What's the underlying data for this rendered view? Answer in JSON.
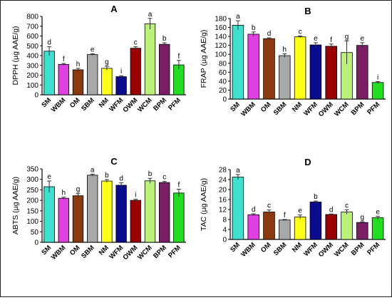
{
  "chart_data": [
    {
      "panel": "A",
      "type": "bar",
      "title": "",
      "ylabel": "DPPH (µg AAE/g)",
      "ylim": [
        0,
        800
      ],
      "yticks": [
        0,
        100,
        200,
        300,
        400,
        500,
        600,
        700,
        800
      ],
      "categories": [
        "SM",
        "WBM",
        "OM",
        "SBM",
        "NM",
        "WFM",
        "OWM",
        "WCM",
        "BPM",
        "PFM"
      ],
      "values": [
        445,
        310,
        255,
        410,
        270,
        185,
        475,
        725,
        515,
        305
      ],
      "errors": [
        45,
        10,
        15,
        8,
        20,
        10,
        15,
        55,
        15,
        45
      ],
      "letters": [
        "d",
        "f",
        "h",
        "e",
        "g",
        "i",
        "c",
        "a",
        "b",
        "f"
      ],
      "colors": [
        "#40e0d0",
        "#e040e0",
        "#8b3a0f",
        "#a8a8a8",
        "#ffff1a",
        "#0a0a8c",
        "#990000",
        "#bbf07a",
        "#7a1f66",
        "#22dd22"
      ]
    },
    {
      "panel": "B",
      "type": "bar",
      "title": "",
      "ylabel": "FRAP (µg AAE/g)",
      "ylim": [
        0,
        180
      ],
      "yticks": [
        0,
        20,
        40,
        60,
        80,
        100,
        120,
        140,
        160,
        180
      ],
      "categories": [
        "SM",
        "WBM",
        "OM",
        "SBM",
        "NM",
        "WFM",
        "OWM",
        "WCM",
        "BPM",
        "PFM"
      ],
      "values": [
        165,
        145,
        135,
        97,
        139,
        121,
        118,
        104,
        120,
        37
      ],
      "errors": [
        10,
        5,
        2,
        4,
        2,
        5,
        5,
        26,
        6,
        2
      ],
      "letters": [
        "a",
        "b",
        "d",
        "h",
        "c",
        "e",
        "f",
        "g",
        "e",
        "i"
      ],
      "colors": [
        "#40e0d0",
        "#e040e0",
        "#8b3a0f",
        "#a8a8a8",
        "#ffff1a",
        "#0a0a8c",
        "#990000",
        "#bbf07a",
        "#7a1f66",
        "#22dd22"
      ]
    },
    {
      "panel": "C",
      "type": "bar",
      "title": "",
      "ylabel": "ABTS (µg AAE/g)",
      "ylim": [
        0,
        350
      ],
      "yticks": [
        0,
        50,
        100,
        150,
        200,
        250,
        300,
        350
      ],
      "categories": [
        "SM",
        "WBM",
        "OM",
        "SBM",
        "NM",
        "WFM",
        "OWM",
        "WCM",
        "BPM",
        "PFM"
      ],
      "values": [
        265,
        210,
        222,
        320,
        292,
        272,
        200,
        293,
        285,
        235
      ],
      "errors": [
        27,
        5,
        10,
        5,
        7,
        12,
        5,
        12,
        5,
        18
      ],
      "letters": [
        "e",
        "h",
        "g",
        "a",
        "b",
        "d",
        "i",
        "b",
        "c",
        "f"
      ],
      "colors": [
        "#40e0d0",
        "#e040e0",
        "#8b3a0f",
        "#a8a8a8",
        "#ffff1a",
        "#0a0a8c",
        "#990000",
        "#bbf07a",
        "#7a1f66",
        "#22dd22"
      ]
    },
    {
      "panel": "D",
      "type": "bar",
      "title": "",
      "ylabel": "TAC (µg AAE/g)",
      "ylim": [
        0,
        28
      ],
      "yticks": [
        0,
        4,
        8,
        12,
        16,
        20,
        24,
        28
      ],
      "categories": [
        "SM",
        "WBM",
        "OM",
        "SBM",
        "NM",
        "WFM",
        "OWM",
        "WCM",
        "BPM",
        "PFM"
      ],
      "values": [
        25,
        9.9,
        11.0,
        7.8,
        9.0,
        15.0,
        10.0,
        11.0,
        6.8,
        8.7
      ],
      "errors": [
        1.0,
        0.4,
        0.8,
        0.2,
        0.8,
        0.4,
        0.2,
        0.9,
        0.3,
        0.6
      ],
      "letters": [
        "a",
        "d",
        "c",
        "f",
        "e",
        "b",
        "d",
        "c",
        "g",
        "e"
      ],
      "colors": [
        "#40e0d0",
        "#e040e0",
        "#8b3a0f",
        "#a8a8a8",
        "#ffff1a",
        "#0a0a8c",
        "#990000",
        "#bbf07a",
        "#7a1f66",
        "#22dd22"
      ]
    }
  ]
}
